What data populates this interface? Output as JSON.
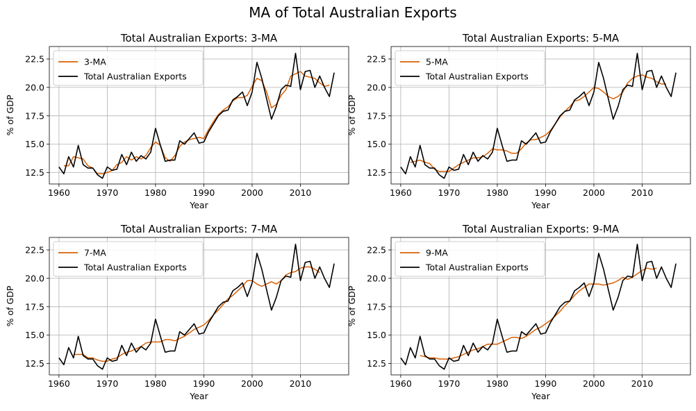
{
  "figure": {
    "suptitle": "MA of Total Australian Exports"
  },
  "chart_data": [
    {
      "type": "line",
      "title": "Total Australian Exports: 3-MA",
      "xlabel": "Year",
      "ylabel": "% of GDP",
      "xlim": [
        1958,
        2020
      ],
      "ylim": [
        11.5,
        23.6
      ],
      "xticks": [
        1960,
        1970,
        1980,
        1990,
        2000,
        2010
      ],
      "yticks": [
        "12.5",
        "15.0",
        "17.5",
        "20.0",
        "22.5"
      ],
      "grid": true,
      "legend_position": "top-left",
      "series": [
        {
          "name": "3-MA",
          "color": "#d95f02",
          "x": [
            1961,
            1962,
            1963,
            1964,
            1965,
            1966,
            1967,
            1968,
            1969,
            1970,
            1971,
            1972,
            1973,
            1974,
            1975,
            1976,
            1977,
            1978,
            1979,
            1980,
            1981,
            1982,
            1983,
            1984,
            1985,
            1986,
            1987,
            1988,
            1989,
            1990,
            1991,
            1992,
            1993,
            1994,
            1995,
            1996,
            1997,
            1998,
            1999,
            2000,
            2001,
            2002,
            2003,
            2004,
            2005,
            2006,
            2007,
            2008,
            2009,
            2010,
            2011,
            2012,
            2013,
            2014,
            2015,
            2016
          ],
          "y": [
            13.1,
            13.1,
            13.9,
            13.8,
            13.7,
            13.1,
            12.9,
            12.4,
            12.4,
            12.5,
            12.7,
            13.2,
            13.4,
            13.9,
            13.6,
            13.9,
            13.7,
            14.0,
            14.7,
            15.2,
            14.9,
            13.8,
            13.5,
            14.0,
            14.8,
            15.2,
            15.4,
            15.5,
            15.6,
            15.5,
            16.3,
            17.0,
            17.6,
            18.0,
            18.3,
            18.8,
            19.1,
            19.1,
            19.3,
            20.1,
            20.8,
            20.6,
            19.6,
            18.2,
            18.5,
            19.3,
            19.8,
            21.0,
            21.2,
            21.4,
            21.0,
            20.9,
            20.8,
            20.4,
            20.1,
            20.2
          ]
        },
        {
          "name": "Total Australian Exports",
          "color": "#000000",
          "x": [
            1960,
            1961,
            1962,
            1963,
            1964,
            1965,
            1966,
            1967,
            1968,
            1969,
            1970,
            1971,
            1972,
            1973,
            1974,
            1975,
            1976,
            1977,
            1978,
            1979,
            1980,
            1981,
            1982,
            1983,
            1984,
            1985,
            1986,
            1987,
            1988,
            1989,
            1990,
            1991,
            1992,
            1993,
            1994,
            1995,
            1996,
            1997,
            1998,
            1999,
            2000,
            2001,
            2002,
            2003,
            2004,
            2005,
            2006,
            2007,
            2008,
            2009,
            2010,
            2011,
            2012,
            2013,
            2014,
            2015,
            2016,
            2017
          ],
          "y": [
            13.0,
            12.4,
            13.9,
            13.0,
            14.9,
            13.2,
            12.9,
            12.9,
            12.3,
            12.0,
            13.0,
            12.7,
            12.8,
            14.1,
            13.2,
            14.3,
            13.5,
            14.0,
            13.7,
            14.3,
            16.4,
            14.9,
            13.5,
            13.6,
            13.6,
            15.3,
            15.0,
            15.5,
            16.0,
            15.1,
            15.2,
            16.1,
            16.8,
            17.5,
            17.9,
            18.0,
            18.9,
            19.2,
            19.6,
            18.4,
            19.6,
            22.2,
            20.8,
            19.0,
            17.2,
            18.3,
            19.8,
            20.2,
            20.1,
            23.0,
            19.8,
            21.4,
            21.5,
            20.0,
            21.0,
            20.0,
            19.2,
            21.3
          ]
        }
      ]
    },
    {
      "type": "line",
      "title": "Total Australian Exports: 5-MA",
      "xlabel": "Year",
      "ylabel": "% of GDP",
      "xlim": [
        1958,
        2020
      ],
      "ylim": [
        11.5,
        23.6
      ],
      "xticks": [
        1960,
        1970,
        1980,
        1990,
        2000,
        2010
      ],
      "yticks": [
        "12.5",
        "15.0",
        "17.5",
        "20.0",
        "22.5"
      ],
      "grid": true,
      "legend_position": "top-left",
      "series": [
        {
          "name": "5-MA",
          "color": "#d95f02",
          "x": [
            1962,
            1963,
            1964,
            1965,
            1966,
            1967,
            1968,
            1969,
            1970,
            1971,
            1972,
            1973,
            1974,
            1975,
            1976,
            1977,
            1978,
            1979,
            1980,
            1981,
            1982,
            1983,
            1984,
            1985,
            1986,
            1987,
            1988,
            1989,
            1990,
            1991,
            1992,
            1993,
            1994,
            1995,
            1996,
            1997,
            1998,
            1999,
            2000,
            2001,
            2002,
            2003,
            2004,
            2005,
            2006,
            2007,
            2008,
            2009,
            2010,
            2011,
            2012,
            2013,
            2014,
            2015
          ],
          "y": [
            13.4,
            13.5,
            13.6,
            13.4,
            13.3,
            12.8,
            12.6,
            12.6,
            12.6,
            12.9,
            13.2,
            13.4,
            13.6,
            13.8,
            13.8,
            13.9,
            14.2,
            14.6,
            14.5,
            14.5,
            14.4,
            14.2,
            14.2,
            14.6,
            15.1,
            15.4,
            15.4,
            15.6,
            15.8,
            16.2,
            16.8,
            17.4,
            17.9,
            18.3,
            18.8,
            18.9,
            19.2,
            19.6,
            20.0,
            19.9,
            19.6,
            19.2,
            19.0,
            19.2,
            19.6,
            20.4,
            20.8,
            21.0,
            21.1,
            20.9,
            20.8,
            20.5,
            20.3,
            20.3
          ]
        },
        {
          "name": "Total Australian Exports",
          "color": "#000000",
          "x": [
            1960,
            1961,
            1962,
            1963,
            1964,
            1965,
            1966,
            1967,
            1968,
            1969,
            1970,
            1971,
            1972,
            1973,
            1974,
            1975,
            1976,
            1977,
            1978,
            1979,
            1980,
            1981,
            1982,
            1983,
            1984,
            1985,
            1986,
            1987,
            1988,
            1989,
            1990,
            1991,
            1992,
            1993,
            1994,
            1995,
            1996,
            1997,
            1998,
            1999,
            2000,
            2001,
            2002,
            2003,
            2004,
            2005,
            2006,
            2007,
            2008,
            2009,
            2010,
            2011,
            2012,
            2013,
            2014,
            2015,
            2016,
            2017
          ],
          "y": [
            13.0,
            12.4,
            13.9,
            13.0,
            14.9,
            13.2,
            12.9,
            12.9,
            12.3,
            12.0,
            13.0,
            12.7,
            12.8,
            14.1,
            13.2,
            14.3,
            13.5,
            14.0,
            13.7,
            14.3,
            16.4,
            14.9,
            13.5,
            13.6,
            13.6,
            15.3,
            15.0,
            15.5,
            16.0,
            15.1,
            15.2,
            16.1,
            16.8,
            17.5,
            17.9,
            18.0,
            18.9,
            19.2,
            19.6,
            18.4,
            19.6,
            22.2,
            20.8,
            19.0,
            17.2,
            18.3,
            19.8,
            20.2,
            20.1,
            23.0,
            19.8,
            21.4,
            21.5,
            20.0,
            21.0,
            20.0,
            19.2,
            21.3
          ]
        }
      ]
    },
    {
      "type": "line",
      "title": "Total Australian Exports: 7-MA",
      "xlabel": "Year",
      "ylabel": "% of GDP",
      "xlim": [
        1958,
        2020
      ],
      "ylim": [
        11.5,
        23.6
      ],
      "xticks": [
        1960,
        1970,
        1980,
        1990,
        2000,
        2010
      ],
      "yticks": [
        "12.5",
        "15.0",
        "17.5",
        "20.0",
        "22.5"
      ],
      "grid": true,
      "legend_position": "top-left",
      "series": [
        {
          "name": "7-MA",
          "color": "#d95f02",
          "x": [
            1963,
            1964,
            1965,
            1966,
            1967,
            1968,
            1969,
            1970,
            1971,
            1972,
            1973,
            1974,
            1975,
            1976,
            1977,
            1978,
            1979,
            1980,
            1981,
            1982,
            1983,
            1984,
            1985,
            1986,
            1987,
            1988,
            1989,
            1990,
            1991,
            1992,
            1993,
            1994,
            1995,
            1996,
            1997,
            1998,
            1999,
            2000,
            2001,
            2002,
            2003,
            2004,
            2005,
            2006,
            2007,
            2008,
            2009,
            2010,
            2011,
            2012,
            2013,
            2014
          ],
          "y": [
            13.3,
            13.3,
            13.3,
            13.0,
            13.0,
            12.8,
            12.7,
            12.7,
            12.9,
            13.0,
            13.3,
            13.5,
            13.6,
            13.8,
            14.0,
            14.3,
            14.4,
            14.4,
            14.4,
            14.6,
            14.6,
            14.5,
            14.7,
            14.9,
            15.2,
            15.5,
            15.7,
            15.9,
            16.3,
            16.8,
            17.2,
            17.7,
            18.2,
            18.5,
            18.9,
            19.3,
            19.8,
            19.8,
            19.5,
            19.3,
            19.5,
            19.7,
            19.5,
            19.8,
            20.3,
            20.5,
            20.6,
            20.9,
            21.0,
            21.0,
            20.8,
            20.5
          ]
        },
        {
          "name": "Total Australian Exports",
          "color": "#000000",
          "x": [
            1960,
            1961,
            1962,
            1963,
            1964,
            1965,
            1966,
            1967,
            1968,
            1969,
            1970,
            1971,
            1972,
            1973,
            1974,
            1975,
            1976,
            1977,
            1978,
            1979,
            1980,
            1981,
            1982,
            1983,
            1984,
            1985,
            1986,
            1987,
            1988,
            1989,
            1990,
            1991,
            1992,
            1993,
            1994,
            1995,
            1996,
            1997,
            1998,
            1999,
            2000,
            2001,
            2002,
            2003,
            2004,
            2005,
            2006,
            2007,
            2008,
            2009,
            2010,
            2011,
            2012,
            2013,
            2014,
            2015,
            2016,
            2017
          ],
          "y": [
            13.0,
            12.4,
            13.9,
            13.0,
            14.9,
            13.2,
            12.9,
            12.9,
            12.3,
            12.0,
            13.0,
            12.7,
            12.8,
            14.1,
            13.2,
            14.3,
            13.5,
            14.0,
            13.7,
            14.3,
            16.4,
            14.9,
            13.5,
            13.6,
            13.6,
            15.3,
            15.0,
            15.5,
            16.0,
            15.1,
            15.2,
            16.1,
            16.8,
            17.5,
            17.9,
            18.0,
            18.9,
            19.2,
            19.6,
            18.4,
            19.6,
            22.2,
            20.8,
            19.0,
            17.2,
            18.3,
            19.8,
            20.2,
            20.1,
            23.0,
            19.8,
            21.4,
            21.5,
            20.0,
            21.0,
            20.0,
            19.2,
            21.3
          ]
        }
      ]
    },
    {
      "type": "line",
      "title": "Total Australian Exports: 9-MA",
      "xlabel": "Year",
      "ylabel": "% of GDP",
      "xlim": [
        1958,
        2020
      ],
      "ylim": [
        11.5,
        23.6
      ],
      "xticks": [
        1960,
        1970,
        1980,
        1990,
        2000,
        2010
      ],
      "yticks": [
        "12.5",
        "15.0",
        "17.5",
        "20.0",
        "22.5"
      ],
      "grid": true,
      "legend_position": "top-left",
      "series": [
        {
          "name": "9-MA",
          "color": "#d95f02",
          "x": [
            1964,
            1965,
            1966,
            1967,
            1968,
            1969,
            1970,
            1971,
            1972,
            1973,
            1974,
            1975,
            1976,
            1977,
            1978,
            1979,
            1980,
            1981,
            1982,
            1983,
            1984,
            1985,
            1986,
            1987,
            1988,
            1989,
            1990,
            1991,
            1992,
            1993,
            1994,
            1995,
            1996,
            1997,
            1998,
            1999,
            2000,
            2001,
            2002,
            2003,
            2004,
            2005,
            2006,
            2007,
            2008,
            2009,
            2010,
            2011,
            2012,
            2013
          ],
          "y": [
            13.2,
            13.1,
            13.0,
            13.0,
            12.9,
            12.9,
            12.9,
            13.0,
            13.1,
            13.3,
            13.5,
            13.7,
            13.8,
            14.0,
            14.2,
            14.2,
            14.2,
            14.4,
            14.6,
            14.8,
            14.8,
            14.7,
            14.9,
            15.2,
            15.5,
            15.7,
            16.0,
            16.3,
            16.7,
            17.1,
            17.6,
            18.0,
            18.5,
            18.9,
            19.2,
            19.5,
            19.5,
            19.5,
            19.4,
            19.5,
            19.6,
            19.8,
            20.1,
            19.9,
            20.1,
            20.4,
            20.7,
            20.9,
            20.8,
            20.9
          ]
        },
        {
          "name": "Total Australian Exports",
          "color": "#000000",
          "x": [
            1960,
            1961,
            1962,
            1963,
            1964,
            1965,
            1966,
            1967,
            1968,
            1969,
            1970,
            1971,
            1972,
            1973,
            1974,
            1975,
            1976,
            1977,
            1978,
            1979,
            1980,
            1981,
            1982,
            1983,
            1984,
            1985,
            1986,
            1987,
            1988,
            1989,
            1990,
            1991,
            1992,
            1993,
            1994,
            1995,
            1996,
            1997,
            1998,
            1999,
            2000,
            2001,
            2002,
            2003,
            2004,
            2005,
            2006,
            2007,
            2008,
            2009,
            2010,
            2011,
            2012,
            2013,
            2014,
            2015,
            2016,
            2017
          ],
          "y": [
            13.0,
            12.4,
            13.9,
            13.0,
            14.9,
            13.2,
            12.9,
            12.9,
            12.3,
            12.0,
            13.0,
            12.7,
            12.8,
            14.1,
            13.2,
            14.3,
            13.5,
            14.0,
            13.7,
            14.3,
            16.4,
            14.9,
            13.5,
            13.6,
            13.6,
            15.3,
            15.0,
            15.5,
            16.0,
            15.1,
            15.2,
            16.1,
            16.8,
            17.5,
            17.9,
            18.0,
            18.9,
            19.2,
            19.6,
            18.4,
            19.6,
            22.2,
            20.8,
            19.0,
            17.2,
            18.3,
            19.8,
            20.2,
            20.1,
            23.0,
            19.8,
            21.4,
            21.5,
            20.0,
            21.0,
            20.0,
            19.2,
            21.3
          ]
        }
      ]
    }
  ]
}
